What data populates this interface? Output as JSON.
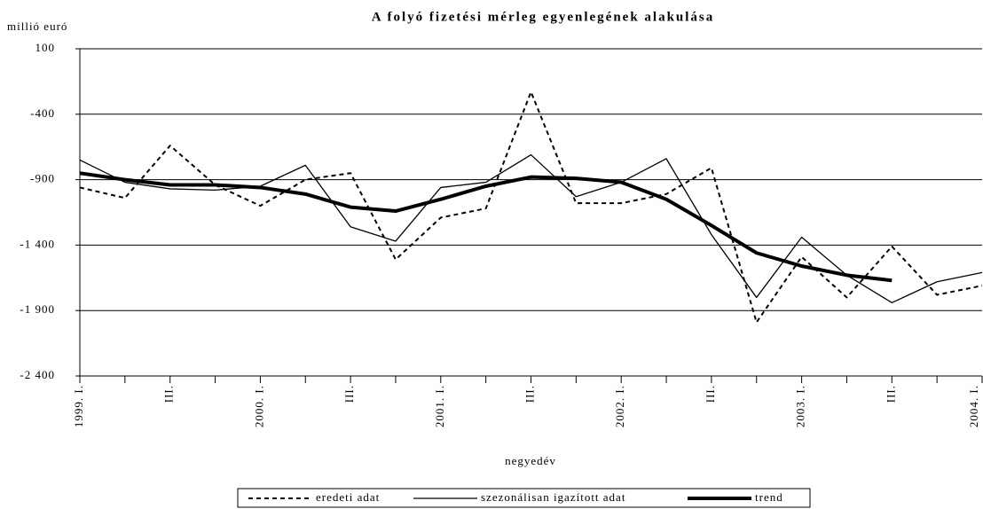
{
  "chart_data": {
    "type": "line",
    "title": "A folyó fizetési mérleg egyenlegének alakulása",
    "y_label": "millió euró",
    "x_label": "negyedév",
    "categories": [
      "1999. I.",
      null,
      "III.",
      null,
      "2000. I.",
      null,
      "III.",
      null,
      "2001. I.",
      null,
      "III.",
      null,
      "2002. I.",
      null,
      "III.",
      null,
      "2003. I.",
      null,
      "III.",
      null,
      "2004. I."
    ],
    "series": [
      {
        "name": "eredeti adat",
        "color": "#000000",
        "dashed": true,
        "line_width": 2,
        "values": [
          -960,
          -1040,
          -640,
          -940,
          -1100,
          -900,
          -850,
          -1510,
          -1190,
          -1120,
          -230,
          -1080,
          -1080,
          -1010,
          -810,
          -1990,
          -1490,
          -1800,
          -1410,
          -1780,
          -1710
        ]
      },
      {
        "name": "szezonálisan igazított adat",
        "color": "#000000",
        "dashed": false,
        "line_width": 1.3,
        "values": [
          -750,
          -920,
          -970,
          -980,
          -950,
          -790,
          -1260,
          -1370,
          -960,
          -920,
          -710,
          -1030,
          -920,
          -740,
          -1320,
          -1800,
          -1340,
          -1630,
          -1840,
          -1680,
          -1610
        ]
      },
      {
        "name": "trend",
        "color": "#000000",
        "dashed": false,
        "line_width": 4,
        "values": [
          -850,
          -900,
          -940,
          -940,
          -960,
          -1010,
          -1110,
          -1140,
          -1050,
          -950,
          -880,
          -890,
          -920,
          -1050,
          -1250,
          -1460,
          -1560,
          -1630,
          -1670,
          null,
          null
        ]
      }
    ],
    "ylim": [
      -2400,
      100
    ],
    "yticks": [
      {
        "value": -2400,
        "label": "-2 400"
      },
      {
        "value": -1900,
        "label": "-1 900"
      },
      {
        "value": -1400,
        "label": "-1 400"
      },
      -900,
      -400,
      100
    ],
    "grid": true,
    "legend": "bottom"
  }
}
